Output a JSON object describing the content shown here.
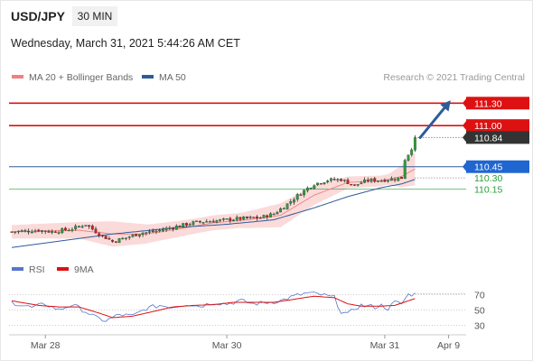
{
  "header": {
    "symbol": "USD/JPY",
    "timeframe": "30 MIN",
    "datetime": "Wednesday, March 31, 2021 5:44:26 AM CET",
    "credit": "Research © 2021 Trading Central"
  },
  "legend": {
    "bollinger": {
      "label": "MA 20 + Bollinger Bands",
      "color": "#f08080"
    },
    "ma50": {
      "label": "MA 50",
      "color": "#2e5c99"
    },
    "rsi": {
      "label": "RSI",
      "color": "#5577cc"
    },
    "rsi_ma": {
      "label": "9MA",
      "color": "#dd1111"
    }
  },
  "colors": {
    "bull": "#2a9d3a",
    "bear": "#cc2222",
    "wick": "#333333",
    "band": "#fad4d4",
    "resistance": "#dd1111",
    "pivot": "#2e5c99",
    "support": "#2a9d3a",
    "arrow": "#2e5c99",
    "last_price": "#333333"
  },
  "chart_data": [
    {
      "type": "candlestick",
      "x_ticks": [
        {
          "label": "Mar 28",
          "index": 10
        },
        {
          "label": "Mar 30",
          "index": 64
        },
        {
          "label": "Mar 31",
          "index": 111
        },
        {
          "label": "Apr 9",
          "index": 130
        }
      ],
      "y_range": [
        109.3,
        111.4
      ],
      "candles_count": 121,
      "close_anchors": [
        [
          0,
          109.58
        ],
        [
          8,
          109.6
        ],
        [
          12,
          109.58
        ],
        [
          18,
          109.62
        ],
        [
          22,
          109.68
        ],
        [
          26,
          109.55
        ],
        [
          30,
          109.45
        ],
        [
          34,
          109.5
        ],
        [
          38,
          109.56
        ],
        [
          42,
          109.58
        ],
        [
          46,
          109.62
        ],
        [
          50,
          109.66
        ],
        [
          54,
          109.7
        ],
        [
          58,
          109.72
        ],
        [
          62,
          109.73
        ],
        [
          66,
          109.75
        ],
        [
          70,
          109.76
        ],
        [
          74,
          109.77
        ],
        [
          78,
          109.82
        ],
        [
          82,
          109.95
        ],
        [
          86,
          110.1
        ],
        [
          90,
          110.22
        ],
        [
          94,
          110.27
        ],
        [
          98,
          110.28
        ],
        [
          102,
          110.2
        ],
        [
          106,
          110.27
        ],
        [
          110,
          110.27
        ],
        [
          114,
          110.29
        ],
        [
          116,
          110.3
        ],
        [
          117,
          110.55
        ],
        [
          118,
          110.62
        ],
        [
          119,
          110.7
        ],
        [
          120,
          110.84
        ]
      ],
      "ma20_anchors": [
        [
          0,
          109.58
        ],
        [
          20,
          109.6
        ],
        [
          30,
          109.55
        ],
        [
          40,
          109.55
        ],
        [
          50,
          109.62
        ],
        [
          60,
          109.7
        ],
        [
          70,
          109.74
        ],
        [
          80,
          109.8
        ],
        [
          90,
          110.07
        ],
        [
          100,
          110.24
        ],
        [
          110,
          110.26
        ],
        [
          116,
          110.32
        ],
        [
          120,
          110.42
        ]
      ],
      "band_width_anchors": [
        [
          0,
          0.09
        ],
        [
          20,
          0.11
        ],
        [
          30,
          0.17
        ],
        [
          42,
          0.12
        ],
        [
          55,
          0.1
        ],
        [
          68,
          0.1
        ],
        [
          80,
          0.16
        ],
        [
          90,
          0.13
        ],
        [
          100,
          0.08
        ],
        [
          112,
          0.07
        ],
        [
          120,
          0.22
        ]
      ],
      "ma50_anchors": [
        [
          0,
          109.37
        ],
        [
          30,
          109.55
        ],
        [
          50,
          109.64
        ],
        [
          64,
          109.68
        ],
        [
          78,
          109.74
        ],
        [
          90,
          109.9
        ],
        [
          100,
          110.05
        ],
        [
          110,
          110.17
        ],
        [
          116,
          110.22
        ],
        [
          120,
          110.28
        ]
      ],
      "levels": [
        {
          "kind": "resistance",
          "value": 111.3,
          "label": "111.30"
        },
        {
          "kind": "resistance",
          "value": 111.0,
          "label": "111.00"
        },
        {
          "kind": "last",
          "value": 110.84,
          "label": "110.84"
        },
        {
          "kind": "pivot",
          "value": 110.45,
          "label": "110.45"
        },
        {
          "kind": "support",
          "value": 110.3,
          "label": "110.30"
        },
        {
          "kind": "support",
          "value": 110.15,
          "label": "110.15"
        }
      ],
      "target_arrow": {
        "from": [
          121,
          110.84
        ],
        "to": [
          131,
          111.3
        ]
      }
    },
    {
      "type": "line",
      "panel": "RSI",
      "y_range": [
        20,
        80
      ],
      "y_ticks": [
        70,
        50,
        30
      ],
      "rsi_anchors": [
        [
          0,
          60
        ],
        [
          6,
          53
        ],
        [
          10,
          58
        ],
        [
          14,
          50
        ],
        [
          18,
          57
        ],
        [
          22,
          48
        ],
        [
          25,
          40
        ],
        [
          28,
          36
        ],
        [
          32,
          44
        ],
        [
          36,
          42
        ],
        [
          40,
          52
        ],
        [
          44,
          56
        ],
        [
          48,
          54
        ],
        [
          52,
          58
        ],
        [
          56,
          55
        ],
        [
          60,
          60
        ],
        [
          64,
          58
        ],
        [
          68,
          62
        ],
        [
          72,
          58
        ],
        [
          76,
          60
        ],
        [
          80,
          62
        ],
        [
          84,
          68
        ],
        [
          88,
          72
        ],
        [
          92,
          70
        ],
        [
          96,
          66
        ],
        [
          98,
          48
        ],
        [
          100,
          44
        ],
        [
          102,
          52
        ],
        [
          104,
          56
        ],
        [
          108,
          54
        ],
        [
          110,
          56
        ],
        [
          112,
          52
        ],
        [
          114,
          60
        ],
        [
          116,
          58
        ],
        [
          118,
          70
        ],
        [
          120,
          71
        ]
      ],
      "rsi_ma_anchors": [
        [
          0,
          62
        ],
        [
          8,
          56
        ],
        [
          14,
          54
        ],
        [
          20,
          54
        ],
        [
          26,
          46
        ],
        [
          30,
          40
        ],
        [
          36,
          42
        ],
        [
          42,
          48
        ],
        [
          48,
          54
        ],
        [
          54,
          56
        ],
        [
          60,
          57
        ],
        [
          66,
          60
        ],
        [
          72,
          60
        ],
        [
          78,
          60
        ],
        [
          84,
          64
        ],
        [
          90,
          68
        ],
        [
          96,
          66
        ],
        [
          100,
          58
        ],
        [
          104,
          55
        ],
        [
          110,
          55
        ],
        [
          114,
          56
        ],
        [
          118,
          62
        ],
        [
          120,
          65
        ]
      ]
    }
  ]
}
